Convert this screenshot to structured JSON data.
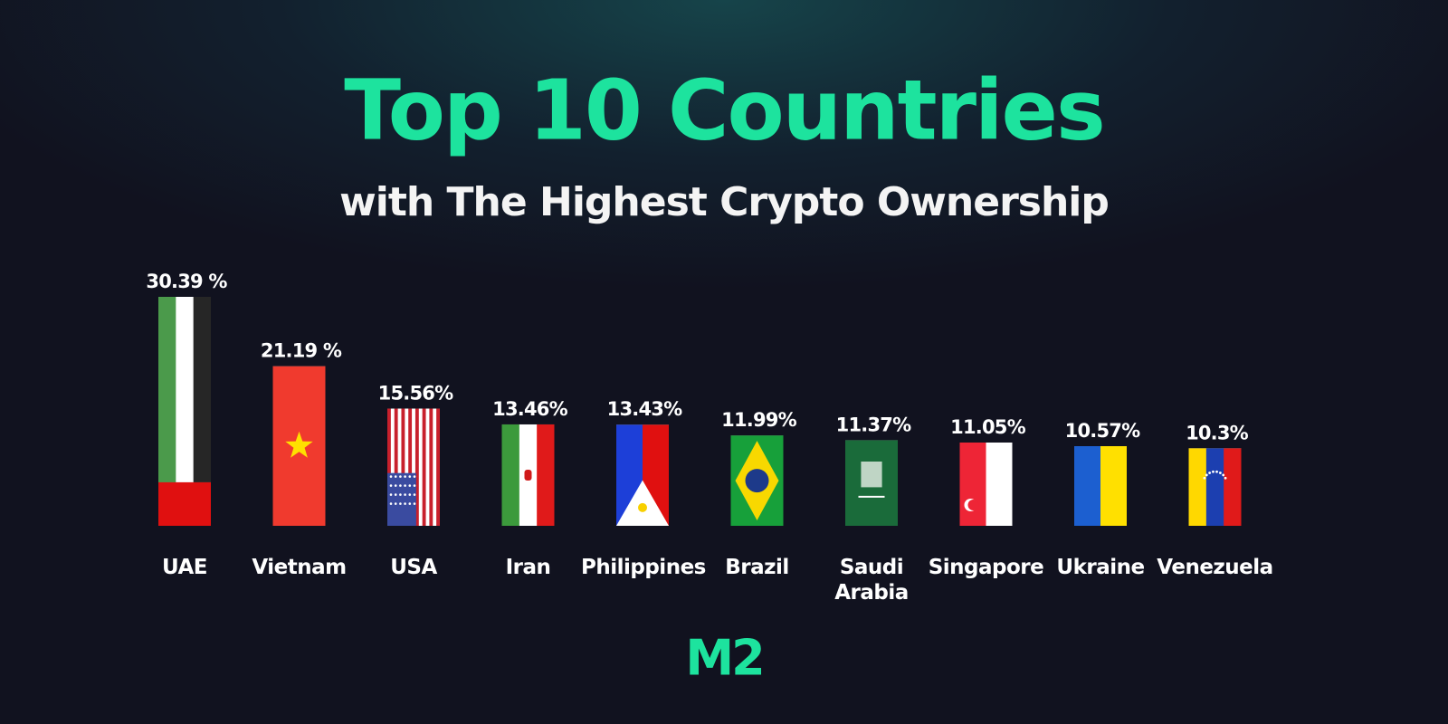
{
  "chart_data": {
    "type": "bar",
    "title": "Top 10 Countries",
    "subtitle": "with The Highest Crypto Ownership",
    "categories": [
      "UAE",
      "Vietnam",
      "USA",
      "Iran",
      "Philippines",
      "Brazil",
      "Saudi Arabia",
      "Singapore",
      "Ukraine",
      "Venezuela"
    ],
    "values": [
      30.39,
      21.19,
      15.56,
      13.46,
      13.43,
      11.99,
      11.37,
      11.05,
      10.57,
      10.3
    ],
    "value_labels": [
      "30.39 %",
      "21.19 %",
      "15.56%",
      "13.46%",
      "13.43%",
      "11.99%",
      "11.37%",
      "11.05%",
      "10.57%",
      "10.3%"
    ],
    "title_color": "#1de39e",
    "logo": "M2"
  }
}
